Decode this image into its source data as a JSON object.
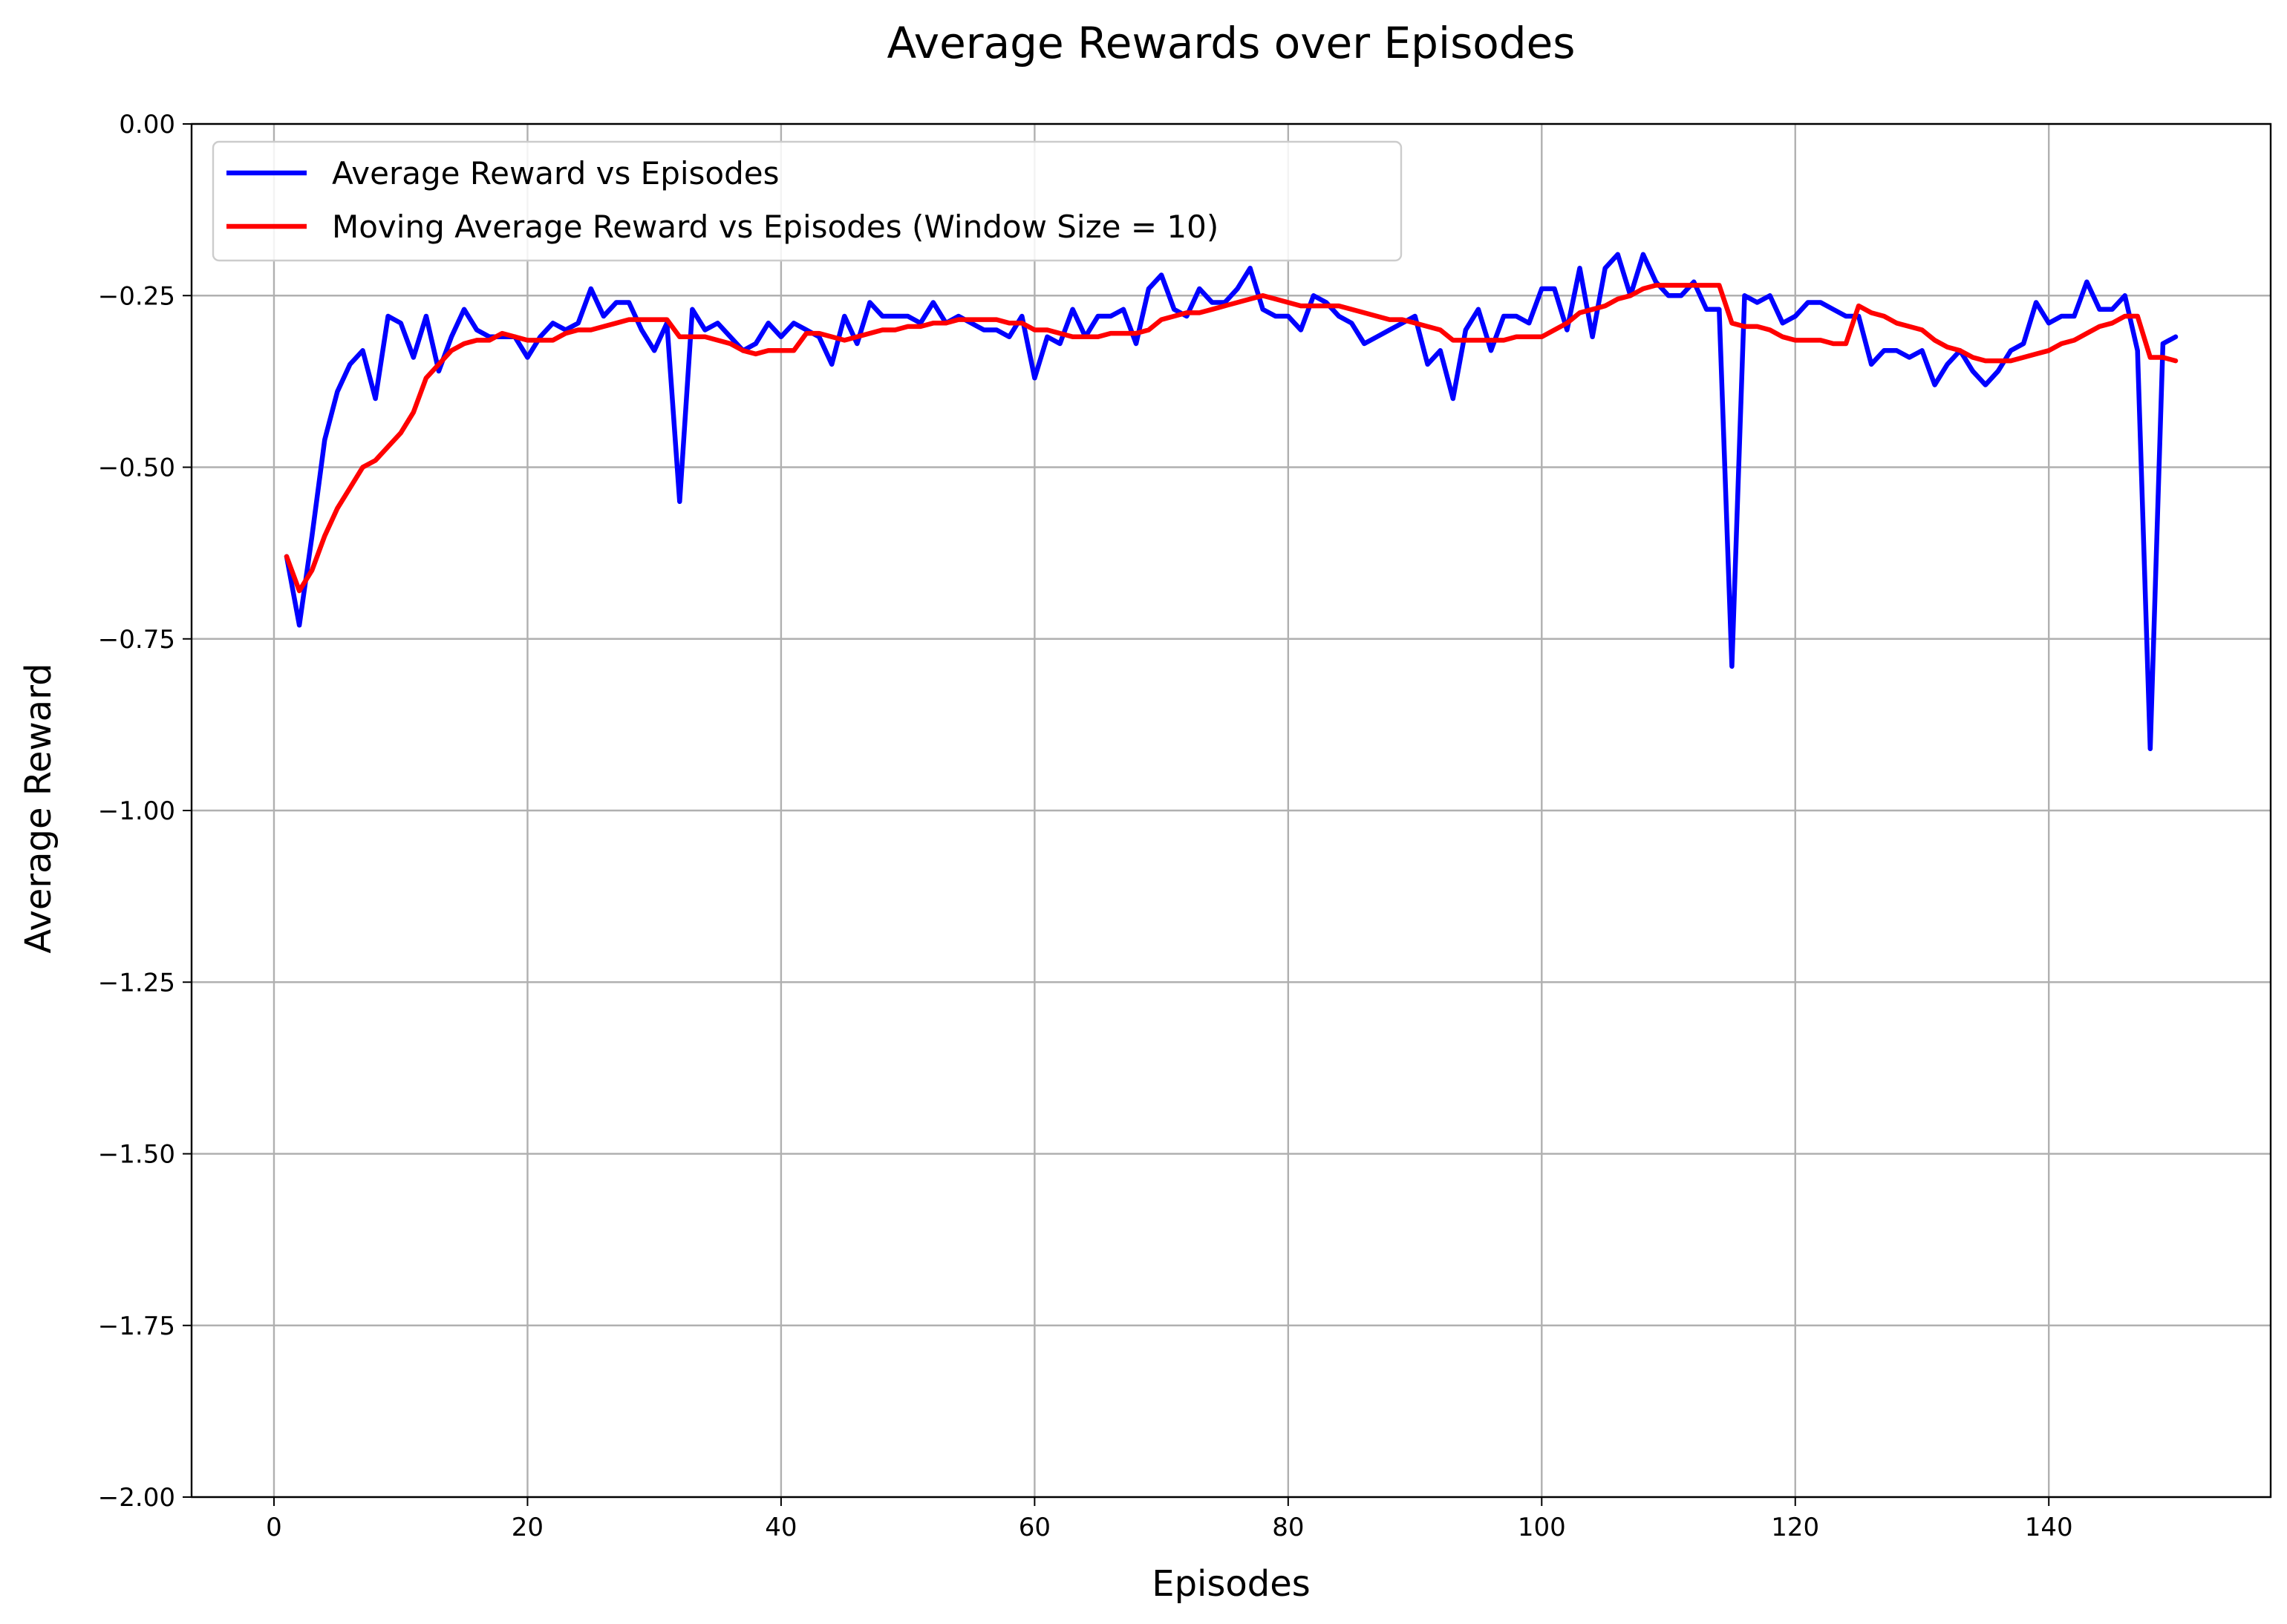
{
  "chart_data": {
    "type": "line",
    "title": "Average Rewards over Episodes",
    "xlabel": "Episodes",
    "ylabel": "Average Reward",
    "xlim": [
      -6.5,
      157.5
    ],
    "ylim": [
      -2.0,
      0.0
    ],
    "xticks": [
      0,
      20,
      40,
      60,
      80,
      100,
      120,
      140
    ],
    "xtick_labels": [
      "0",
      "20",
      "40",
      "60",
      "80",
      "100",
      "120",
      "140"
    ],
    "yticks": [
      0.0,
      -0.25,
      -0.5,
      -0.75,
      -1.0,
      -1.25,
      -1.5,
      -1.75,
      -2.0
    ],
    "ytick_labels": [
      "0.00",
      "−0.25",
      "−0.50",
      "−0.75",
      "−1.00",
      "−1.25",
      "−1.50",
      "−1.75",
      "−2.00"
    ],
    "grid": true,
    "legend_position": "top-left",
    "series": [
      {
        "name": "Average Reward vs Episodes",
        "color": "#0000ff",
        "x": [
          1,
          2,
          3,
          4,
          5,
          6,
          7,
          8,
          9,
          10,
          11,
          12,
          13,
          14,
          15,
          16,
          17,
          18,
          19,
          20,
          21,
          22,
          23,
          24,
          25,
          26,
          27,
          28,
          29,
          30,
          31,
          32,
          33,
          34,
          35,
          36,
          37,
          38,
          39,
          40,
          41,
          42,
          43,
          44,
          45,
          46,
          47,
          48,
          49,
          50,
          51,
          52,
          53,
          54,
          55,
          56,
          57,
          58,
          59,
          60,
          61,
          62,
          63,
          64,
          65,
          66,
          67,
          68,
          69,
          70,
          71,
          72,
          73,
          74,
          75,
          76,
          77,
          78,
          79,
          80,
          81,
          82,
          83,
          84,
          85,
          86,
          87,
          88,
          89,
          90,
          91,
          92,
          93,
          94,
          95,
          96,
          97,
          98,
          99,
          100,
          101,
          102,
          103,
          104,
          105,
          106,
          107,
          108,
          109,
          110,
          111,
          112,
          113,
          114,
          115,
          116,
          117,
          118,
          119,
          120,
          121,
          122,
          123,
          124,
          125,
          126,
          127,
          128,
          129,
          130,
          131,
          132,
          133,
          134,
          135,
          136,
          137,
          138,
          139,
          140,
          141,
          142,
          143,
          144,
          145,
          146,
          147,
          148,
          149,
          150
        ],
        "y": [
          -0.63,
          -0.73,
          -0.6,
          -0.46,
          -0.39,
          -0.35,
          -0.33,
          -0.4,
          -0.28,
          -0.29,
          -0.34,
          -0.28,
          -0.36,
          -0.31,
          -0.27,
          -0.3,
          -0.31,
          -0.31,
          -0.31,
          -0.34,
          -0.31,
          -0.29,
          -0.3,
          -0.29,
          -0.24,
          -0.28,
          -0.26,
          -0.26,
          -0.3,
          -0.33,
          -0.29,
          -0.55,
          -0.27,
          -0.3,
          -0.29,
          -0.31,
          -0.33,
          -0.32,
          -0.29,
          -0.31,
          -0.29,
          -0.3,
          -0.31,
          -0.35,
          -0.28,
          -0.32,
          -0.26,
          -0.28,
          -0.28,
          -0.28,
          -0.29,
          -0.26,
          -0.29,
          -0.28,
          -0.29,
          -0.3,
          -0.3,
          -0.31,
          -0.28,
          -0.37,
          -0.31,
          -0.32,
          -0.27,
          -0.31,
          -0.28,
          -0.28,
          -0.27,
          -0.32,
          -0.24,
          -0.22,
          -0.27,
          -0.28,
          -0.24,
          -0.26,
          -0.26,
          -0.24,
          -0.21,
          -0.27,
          -0.28,
          -0.28,
          -0.3,
          -0.25,
          -0.26,
          -0.28,
          -0.29,
          -0.32,
          -0.31,
          -0.3,
          -0.29,
          -0.28,
          -0.35,
          -0.33,
          -0.4,
          -0.3,
          -0.27,
          -0.33,
          -0.28,
          -0.28,
          -0.29,
          -0.24,
          -0.24,
          -0.3,
          -0.21,
          -0.31,
          -0.21,
          -0.19,
          -0.25,
          -0.19,
          -0.23,
          -0.25,
          -0.25,
          -0.23,
          -0.27,
          -0.27,
          -0.79,
          -0.25,
          -0.26,
          -0.25,
          -0.29,
          -0.28,
          -0.26,
          -0.26,
          -0.27,
          -0.28,
          -0.28,
          -0.35,
          -0.33,
          -0.33,
          -0.34,
          -0.33,
          -0.38,
          -0.35,
          -0.33,
          -0.36,
          -0.38,
          -0.36,
          -0.33,
          -0.32,
          -0.26,
          -0.29,
          -0.28,
          -0.28,
          -0.23,
          -0.27,
          -0.27,
          -0.25,
          -0.33,
          -0.91,
          -0.32,
          -0.31
        ]
      },
      {
        "name": "Moving Average Reward vs Episodes (Window Size = 10)",
        "color": "#ff0000",
        "x": [
          1,
          2,
          3,
          4,
          5,
          6,
          7,
          8,
          9,
          10,
          11,
          12,
          13,
          14,
          15,
          16,
          17,
          18,
          19,
          20,
          21,
          22,
          23,
          24,
          25,
          26,
          27,
          28,
          29,
          30,
          31,
          32,
          33,
          34,
          35,
          36,
          37,
          38,
          39,
          40,
          41,
          42,
          43,
          44,
          45,
          46,
          47,
          48,
          49,
          50,
          51,
          52,
          53,
          54,
          55,
          56,
          57,
          58,
          59,
          60,
          61,
          62,
          63,
          64,
          65,
          66,
          67,
          68,
          69,
          70,
          71,
          72,
          73,
          74,
          75,
          76,
          77,
          78,
          79,
          80,
          81,
          82,
          83,
          84,
          85,
          86,
          87,
          88,
          89,
          90,
          91,
          92,
          93,
          94,
          95,
          96,
          97,
          98,
          99,
          100,
          101,
          102,
          103,
          104,
          105,
          106,
          107,
          108,
          109,
          110,
          111,
          112,
          113,
          114,
          115,
          116,
          117,
          118,
          119,
          120,
          121,
          122,
          123,
          124,
          125,
          126,
          127,
          128,
          129,
          130,
          131,
          132,
          133,
          134,
          135,
          136,
          137,
          138,
          139,
          140,
          141,
          142,
          143,
          144,
          145,
          146,
          147,
          148,
          149,
          150
        ],
        "y": [
          -0.63,
          -0.68,
          -0.65,
          -0.6,
          -0.56,
          -0.53,
          -0.5,
          -0.49,
          -0.47,
          -0.45,
          -0.42,
          -0.37,
          -0.35,
          -0.33,
          -0.32,
          -0.315,
          -0.315,
          -0.305,
          -0.31,
          -0.315,
          -0.315,
          -0.315,
          -0.305,
          -0.3,
          -0.3,
          -0.295,
          -0.29,
          -0.285,
          -0.285,
          -0.285,
          -0.285,
          -0.31,
          -0.31,
          -0.31,
          -0.315,
          -0.32,
          -0.33,
          -0.335,
          -0.33,
          -0.33,
          -0.33,
          -0.305,
          -0.305,
          -0.31,
          -0.315,
          -0.31,
          -0.305,
          -0.3,
          -0.3,
          -0.295,
          -0.295,
          -0.29,
          -0.29,
          -0.285,
          -0.285,
          -0.285,
          -0.285,
          -0.29,
          -0.29,
          -0.3,
          -0.3,
          -0.305,
          -0.31,
          -0.31,
          -0.31,
          -0.305,
          -0.305,
          -0.305,
          -0.3,
          -0.285,
          -0.28,
          -0.275,
          -0.275,
          -0.27,
          -0.265,
          -0.26,
          -0.255,
          -0.25,
          -0.255,
          -0.26,
          -0.265,
          -0.265,
          -0.265,
          -0.265,
          -0.27,
          -0.275,
          -0.28,
          -0.285,
          -0.285,
          -0.29,
          -0.295,
          -0.3,
          -0.315,
          -0.315,
          -0.315,
          -0.315,
          -0.315,
          -0.31,
          -0.31,
          -0.31,
          -0.3,
          -0.29,
          -0.275,
          -0.27,
          -0.265,
          -0.255,
          -0.25,
          -0.24,
          -0.235,
          -0.235,
          -0.235,
          -0.235,
          -0.235,
          -0.235,
          -0.29,
          -0.295,
          -0.295,
          -0.3,
          -0.31,
          -0.315,
          -0.315,
          -0.315,
          -0.32,
          -0.32,
          -0.265,
          -0.275,
          -0.28,
          -0.29,
          -0.295,
          -0.3,
          -0.315,
          -0.325,
          -0.33,
          -0.34,
          -0.345,
          -0.345,
          -0.345,
          -0.34,
          -0.335,
          -0.33,
          -0.32,
          -0.315,
          -0.305,
          -0.295,
          -0.29,
          -0.28,
          -0.28,
          -0.34,
          -0.34,
          -0.345
        ]
      }
    ]
  }
}
